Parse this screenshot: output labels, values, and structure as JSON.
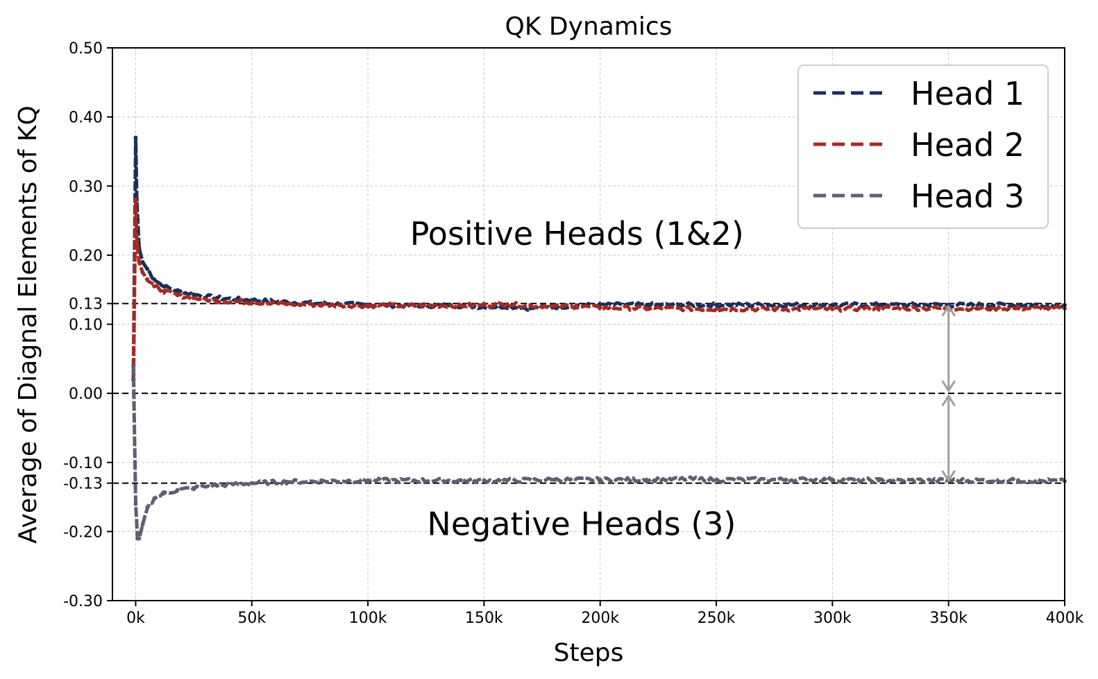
{
  "chart_data": {
    "type": "line",
    "title": "QK Dynamics",
    "xlabel": "Steps",
    "ylabel": "Average of Diagnal Elements of KQ",
    "xlim": [
      -10000,
      400000
    ],
    "ylim": [
      -0.3,
      0.5
    ],
    "x_ticks": [
      0,
      50000,
      100000,
      150000,
      200000,
      250000,
      300000,
      350000,
      400000
    ],
    "x_tick_labels": [
      "0k",
      "50k",
      "100k",
      "150k",
      "200k",
      "250k",
      "300k",
      "350k",
      "400k"
    ],
    "y_ticks": [
      -0.3,
      -0.2,
      -0.13,
      -0.1,
      0.0,
      0.1,
      0.13,
      0.2,
      0.3,
      0.4,
      0.5
    ],
    "y_tick_labels": [
      "-0.30",
      "-0.20",
      "-0.13",
      "-0.10",
      "0.00",
      "0.10",
      "0.13",
      "0.20",
      "0.30",
      "0.40",
      "0.50"
    ],
    "grid": true,
    "legend_position": "top-right",
    "reference_lines": [
      0.13,
      0.0,
      -0.13
    ],
    "annotations": [
      {
        "text": "Positive Heads (1&2)",
        "x": 190000,
        "y": 0.215
      },
      {
        "text": "Negative Heads (3)",
        "x": 192000,
        "y": -0.205
      }
    ],
    "arrow": {
      "x": 350000,
      "from": 0.13,
      "to": -0.13,
      "via": 0.0
    },
    "series": [
      {
        "name": "Head 1",
        "color": "#1b2e5a",
        "x": [
          -1000,
          0,
          500,
          1500,
          3000,
          5000,
          8000,
          12000,
          18000,
          25000,
          35000,
          50000,
          65000,
          80000,
          100000,
          120000,
          140000,
          150000,
          160000,
          170000,
          180000,
          190000,
          200000,
          220000,
          250000,
          280000,
          300000,
          320000,
          350000,
          380000,
          400000
        ],
        "y": [
          0.02,
          0.37,
          0.28,
          0.21,
          0.19,
          0.18,
          0.165,
          0.155,
          0.148,
          0.143,
          0.138,
          0.135,
          0.132,
          0.13,
          0.128,
          0.127,
          0.127,
          0.125,
          0.126,
          0.123,
          0.125,
          0.127,
          0.128,
          0.128,
          0.128,
          0.128,
          0.128,
          0.128,
          0.128,
          0.128,
          0.128
        ]
      },
      {
        "name": "Head 2",
        "color": "#a52a22",
        "x": [
          -1000,
          0,
          500,
          1500,
          3000,
          5000,
          8000,
          12000,
          18000,
          25000,
          35000,
          50000,
          65000,
          80000,
          100000,
          120000,
          140000,
          150000,
          160000,
          170000,
          180000,
          190000,
          200000,
          220000,
          250000,
          280000,
          300000,
          320000,
          350000,
          380000,
          400000
        ],
        "y": [
          0.02,
          0.28,
          0.22,
          0.19,
          0.175,
          0.165,
          0.155,
          0.148,
          0.142,
          0.138,
          0.134,
          0.132,
          0.129,
          0.128,
          0.127,
          0.127,
          0.127,
          0.128,
          0.129,
          0.127,
          0.126,
          0.126,
          0.124,
          0.123,
          0.122,
          0.122,
          0.122,
          0.123,
          0.123,
          0.123,
          0.123
        ]
      },
      {
        "name": "Head 3",
        "color": "#5c6070",
        "x": [
          -1000,
          0,
          800,
          1500,
          3000,
          5000,
          8000,
          12000,
          18000,
          25000,
          35000,
          50000,
          65000,
          80000,
          100000,
          120000,
          140000,
          150000,
          160000,
          180000,
          200000,
          220000,
          240000,
          250000,
          280000,
          300000,
          320000,
          350000,
          380000,
          400000
        ],
        "y": [
          0.04,
          -0.16,
          -0.21,
          -0.21,
          -0.19,
          -0.165,
          -0.152,
          -0.145,
          -0.14,
          -0.137,
          -0.133,
          -0.13,
          -0.128,
          -0.127,
          -0.126,
          -0.126,
          -0.126,
          -0.126,
          -0.126,
          -0.125,
          -0.125,
          -0.125,
          -0.124,
          -0.125,
          -0.125,
          -0.125,
          -0.126,
          -0.126,
          -0.126,
          -0.127
        ]
      }
    ]
  }
}
